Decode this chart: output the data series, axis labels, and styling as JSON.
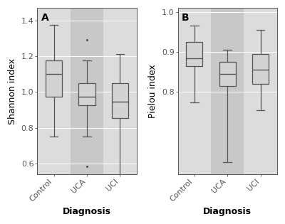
{
  "panel_A": {
    "title": "A",
    "ylabel": "Shannon index",
    "xlabel": "Diagnosis",
    "categories": [
      "Control",
      "UCA",
      "UCI"
    ],
    "boxes": [
      {
        "whislo": 0.75,
        "q1": 0.975,
        "med": 1.1,
        "q3": 1.175,
        "whishi": 1.375,
        "fliers": []
      },
      {
        "whislo": 0.75,
        "q1": 0.925,
        "med": 0.975,
        "q3": 1.05,
        "whishi": 1.175,
        "fliers": [
          1.29,
          0.585
        ]
      },
      {
        "whislo": 0.535,
        "q1": 0.855,
        "med": 0.945,
        "q3": 1.05,
        "whishi": 1.21,
        "fliers": []
      }
    ],
    "ylim": [
      0.54,
      1.47
    ],
    "yticks": [
      0.6,
      0.8,
      1.0,
      1.2,
      1.4
    ]
  },
  "panel_B": {
    "title": "B",
    "ylabel": "Pielou index",
    "xlabel": "Diagnosis",
    "categories": [
      "Control",
      "UCA",
      "UCI"
    ],
    "boxes": [
      {
        "whislo": 0.775,
        "q1": 0.865,
        "med": 0.885,
        "q3": 0.925,
        "whishi": 0.965,
        "fliers": []
      },
      {
        "whislo": 0.625,
        "q1": 0.815,
        "med": 0.845,
        "q3": 0.875,
        "whishi": 0.905,
        "fliers": []
      },
      {
        "whislo": 0.755,
        "q1": 0.82,
        "med": 0.855,
        "q3": 0.895,
        "whishi": 0.955,
        "fliers": []
      }
    ],
    "ylim": [
      0.595,
      1.01
    ],
    "yticks": [
      0.8,
      0.9,
      1.0
    ]
  },
  "box_color": "#d3d3d3",
  "box_edge_color": "#555555",
  "median_color": "#555555",
  "whisker_color": "#555555",
  "cap_color": "#555555",
  "flier_color": "#555555",
  "stripe_odd": "#dcdcdc",
  "stripe_even": "#c8c8c8",
  "fig_bg": "#ffffff",
  "axes_bg": "#dcdcdc",
  "grid_color": "#ffffff",
  "label_fontsize": 9,
  "title_fontsize": 10,
  "xlabel_fontsize": 9,
  "ylabel_fontsize": 9,
  "tick_fontsize": 8
}
